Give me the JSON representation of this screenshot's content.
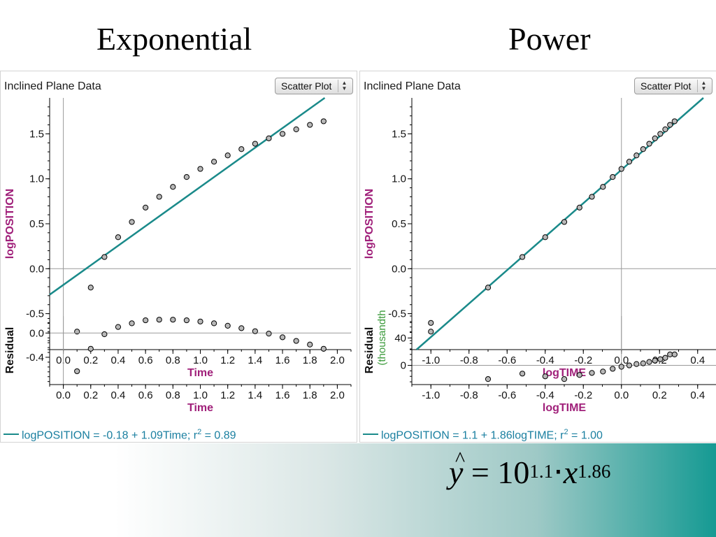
{
  "slide": {
    "left_title": "Exponential",
    "right_title": "Power",
    "formula": {
      "base": "10",
      "exponent": "1.1",
      "dot": "⋅",
      "x": "x",
      "x_exponent": "1.86"
    }
  },
  "colors": {
    "fit_line": "#1a8a8a",
    "points": "#b8b8b8",
    "point_edge": "#000000",
    "axis_title": "#a0207a",
    "equation": "#1a7fa0",
    "thousandth": "#3a9a3a"
  },
  "chart_data": [
    {
      "id": "exp-main",
      "type": "scatter",
      "panel_title": "Inclined Plane Data",
      "selector": "Scatter Plot",
      "xlabel": "Time",
      "ylabel": "logPOSITION",
      "xlim": [
        -0.1,
        2.1
      ],
      "ylim": [
        -0.9,
        1.9
      ],
      "xticks": [
        0.0,
        0.2,
        0.4,
        0.6,
        0.8,
        1.0,
        1.2,
        1.4,
        1.6,
        1.8,
        2.0
      ],
      "xtick_labels": [
        "0.0",
        "0.2",
        "0.4",
        "0.6",
        "0.8",
        "1.0",
        "1.2",
        "1.4",
        "1.6",
        "1.8",
        "2.0"
      ],
      "yticks": [
        -0.5,
        0.0,
        0.5,
        1.0,
        1.5
      ],
      "ytick_labels": [
        "-0.5",
        "0.0",
        "0.5",
        "1.0",
        "1.5"
      ],
      "x": [
        0.1,
        0.2,
        0.3,
        0.4,
        0.5,
        0.6,
        0.7,
        0.8,
        0.9,
        1.0,
        1.1,
        1.2,
        1.3,
        1.4,
        1.5,
        1.6,
        1.7,
        1.8,
        1.9
      ],
      "y": [
        -0.7,
        -0.21,
        0.13,
        0.35,
        0.52,
        0.68,
        0.8,
        0.91,
        1.02,
        1.11,
        1.19,
        1.26,
        1.33,
        1.39,
        1.45,
        1.5,
        1.55,
        1.6,
        1.64
      ],
      "fit": {
        "intercept": -0.18,
        "slope": 1.09
      }
    },
    {
      "id": "exp-resid",
      "type": "scatter",
      "xlabel": "Time",
      "ylabel": "Residual",
      "xlim": [
        -0.1,
        2.1
      ],
      "ylim": [
        -0.85,
        0.28
      ],
      "xticks": [
        0.0,
        0.2,
        0.4,
        0.6,
        0.8,
        1.0,
        1.2,
        1.4,
        1.6,
        1.8,
        2.0
      ],
      "xtick_labels": [
        "0.0",
        "0.2",
        "0.4",
        "0.6",
        "0.8",
        "1.0",
        "1.2",
        "1.4",
        "1.6",
        "1.8",
        "2.0"
      ],
      "yticks": [
        -0.4,
        0.0
      ],
      "ytick_labels": [
        "-0.4",
        "0.0"
      ],
      "x": [
        0.1,
        0.2,
        0.3,
        0.4,
        0.5,
        0.6,
        0.7,
        0.8,
        0.9,
        1.0,
        1.1,
        1.2,
        1.3,
        1.4,
        1.5,
        1.6,
        1.7,
        1.8,
        1.9
      ],
      "y": [
        -0.63,
        -0.26,
        -0.02,
        0.1,
        0.16,
        0.21,
        0.22,
        0.22,
        0.21,
        0.19,
        0.16,
        0.12,
        0.08,
        0.03,
        -0.01,
        -0.07,
        -0.13,
        -0.19,
        -0.26
      ]
    },
    {
      "id": "pow-main",
      "type": "scatter",
      "panel_title": "Inclined Plane Data",
      "selector": "Scatter Plot",
      "xlabel": "logTIME",
      "ylabel": "logPOSITION",
      "xlim": [
        -1.1,
        0.5
      ],
      "ylim": [
        -0.9,
        1.9
      ],
      "xticks": [
        -1.0,
        -0.8,
        -0.6,
        -0.4,
        -0.2,
        0.0,
        0.2,
        0.4
      ],
      "xtick_labels": [
        "-1.0",
        "-0.8",
        "-0.6",
        "-0.4",
        "-0.2",
        "0.0",
        "0.2",
        "0.4"
      ],
      "yticks": [
        -0.5,
        0.0,
        0.5,
        1.0,
        1.5
      ],
      "ytick_labels": [
        "-0.5",
        "0.0",
        "0.5",
        "1.0",
        "1.5"
      ],
      "x": [
        -1.0,
        -0.7,
        -0.52,
        -0.4,
        -0.3,
        -0.22,
        -0.155,
        -0.097,
        -0.046,
        0.0,
        0.041,
        0.079,
        0.114,
        0.146,
        0.176,
        0.204,
        0.23,
        0.255,
        0.279
      ],
      "y": [
        -0.7,
        -0.21,
        0.13,
        0.35,
        0.52,
        0.68,
        0.8,
        0.91,
        1.02,
        1.11,
        1.19,
        1.26,
        1.33,
        1.39,
        1.45,
        1.5,
        1.55,
        1.6,
        1.64
      ],
      "fit": {
        "intercept": 1.1,
        "slope": 1.86
      }
    },
    {
      "id": "pow-resid",
      "type": "scatter",
      "xlabel": "logTIME",
      "ylabel": "Residual",
      "ylabel2": "(thousandth",
      "xlim": [
        -1.1,
        0.5
      ],
      "ylim": [
        -28,
        72
      ],
      "xticks": [
        -1.0,
        -0.8,
        -0.6,
        -0.4,
        -0.2,
        0.0,
        0.2,
        0.4
      ],
      "xtick_labels": [
        "-1.0",
        "-0.8",
        "-0.6",
        "-0.4",
        "-0.2",
        "0.0",
        "0.2",
        "0.4"
      ],
      "yticks": [
        0,
        40
      ],
      "ytick_labels": [
        "0",
        "40"
      ],
      "x": [
        -1.0,
        -0.7,
        -0.52,
        -0.4,
        -0.3,
        -0.22,
        -0.155,
        -0.097,
        -0.046,
        0.0,
        0.041,
        0.079,
        0.114,
        0.146,
        0.176,
        0.204,
        0.23,
        0.255,
        0.279
      ],
      "y": [
        62,
        -20,
        -12,
        -16,
        -20,
        -14,
        -11,
        -9,
        -5,
        -2,
        0,
        2,
        3,
        5,
        7,
        9,
        11,
        16,
        16
      ]
    }
  ],
  "equations": {
    "exp": {
      "text": "logPOSITION = -0.18 + 1.09Time; r",
      "sup": "2",
      "tail": " = 0.89"
    },
    "pow": {
      "text": "logPOSITION = 1.1 + 1.86logTIME; r",
      "sup": "2",
      "tail": " = 1.00"
    }
  }
}
